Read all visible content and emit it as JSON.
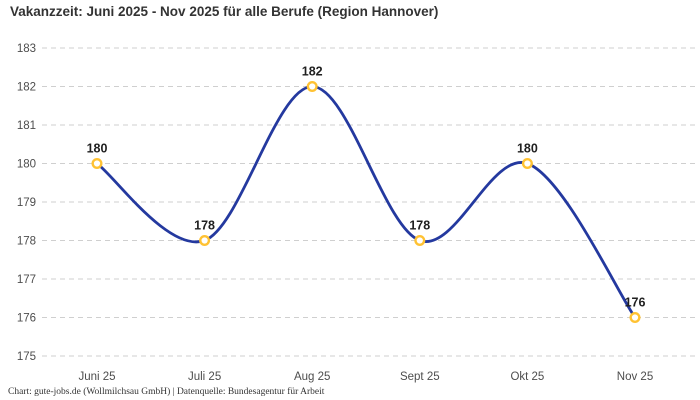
{
  "header": {
    "title": "Vakanzzeit: Juni 2025 - Nov 2025 für alle Berufe (Region Hannover)"
  },
  "footer": {
    "credit": "Chart: gute-jobs.de (Wollmilchsau GmbH) | Datenquelle: Bundesagentur für Arbeit"
  },
  "chart_data": {
    "type": "line",
    "line_shape": "spline",
    "categories": [
      "Juni 25",
      "Juli 25",
      "Aug 25",
      "Sept 25",
      "Okt 25",
      "Nov 25"
    ],
    "values": [
      180,
      178,
      182,
      178,
      180,
      176
    ],
    "data_labels": [
      "180",
      "178",
      "182",
      "178",
      "180",
      "176"
    ],
    "title": "Vakanzzeit: Juni 2025 - Nov 2025 für alle Berufe (Region Hannover)",
    "xlabel": "",
    "ylabel": "",
    "ylim": [
      175,
      183
    ],
    "yticks": [
      175,
      176,
      177,
      178,
      179,
      180,
      181,
      182,
      183
    ],
    "grid": "horizontal-dashed",
    "legend": "none",
    "colors": {
      "line": "#24399F",
      "marker_ring": "#FFC233",
      "marker_fill": "#FFFFFF",
      "grid": "#CFCFCF",
      "title": "#333333",
      "tick_label": "#4D4D4D",
      "data_label": "#1F1F1F",
      "background": "#FFFFFF"
    }
  }
}
